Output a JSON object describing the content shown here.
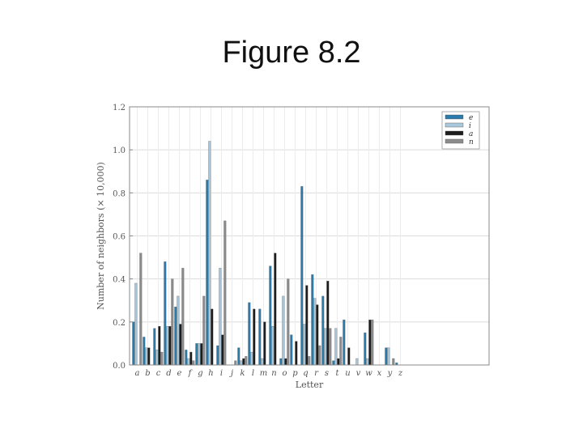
{
  "slide": {
    "title": "Figure 8.2"
  },
  "chart_data": {
    "type": "bar",
    "title": "",
    "xlabel": "Letter",
    "ylabel": "Number of neighbors (× 10,000)",
    "ylim": [
      0,
      1.2
    ],
    "yticks": [
      "0.0",
      "0.2",
      "0.4",
      "0.6",
      "0.8",
      "1.0",
      "1.2"
    ],
    "grid": true,
    "legend_position": "top-right",
    "categories": [
      "a",
      "b",
      "c",
      "d",
      "e",
      "f",
      "g",
      "h",
      "i",
      "j",
      "k",
      "l",
      "m",
      "n",
      "o",
      "p",
      "q",
      "r",
      "s",
      "t",
      "u",
      "v",
      "w",
      "x",
      "y",
      "z"
    ],
    "series": [
      {
        "name": "e",
        "color": "#2b7bab",
        "values": [
          0.2,
          0.13,
          0.17,
          0.48,
          0.27,
          0.07,
          0.1,
          0.86,
          0.09,
          0.0,
          0.08,
          0.29,
          0.26,
          0.46,
          0.03,
          0.14,
          0.83,
          0.42,
          0.32,
          0.02,
          0.21,
          0.0,
          0.15,
          0.0,
          0.08,
          0.01
        ]
      },
      {
        "name": "i",
        "color": "#a9c8dc",
        "values": [
          0.38,
          0.08,
          0.07,
          0.18,
          0.32,
          0.03,
          0.1,
          1.04,
          0.45,
          0.0,
          0.02,
          0.06,
          0.03,
          0.18,
          0.32,
          0.0,
          0.19,
          0.31,
          0.17,
          0.17,
          0.0,
          0.03,
          0.03,
          0.0,
          0.08,
          0.0
        ]
      },
      {
        "name": "a",
        "color": "#1c1c1c",
        "values": [
          0.0,
          0.08,
          0.18,
          0.18,
          0.19,
          0.06,
          0.1,
          0.26,
          0.14,
          0.0,
          0.03,
          0.26,
          0.2,
          0.52,
          0.03,
          0.11,
          0.37,
          0.28,
          0.39,
          0.03,
          0.08,
          0.0,
          0.21,
          0.0,
          0.0,
          0.0
        ]
      },
      {
        "name": "n",
        "color": "#8c8c8c",
        "values": [
          0.52,
          0.0,
          0.06,
          0.4,
          0.45,
          0.02,
          0.32,
          0.0,
          0.67,
          0.02,
          0.04,
          0.0,
          0.0,
          0.0,
          0.4,
          0.0,
          0.04,
          0.09,
          0.17,
          0.13,
          0.0,
          0.0,
          0.21,
          0.0,
          0.03,
          0.0
        ]
      }
    ]
  }
}
